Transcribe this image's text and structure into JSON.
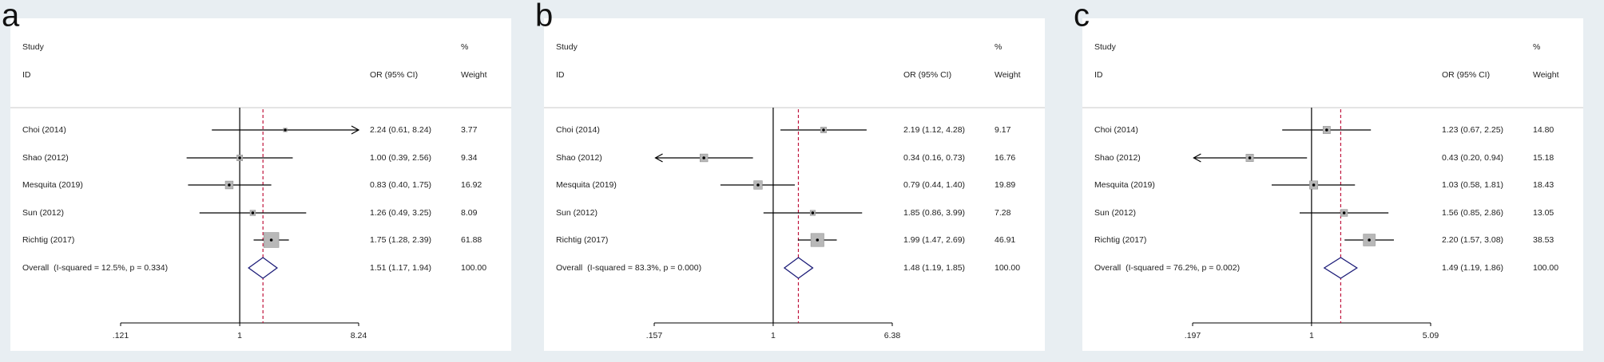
{
  "chart_data": [
    {
      "type": "forest",
      "panel": "a",
      "log": true,
      "headers": {
        "study": "Study",
        "id": "ID",
        "effect": "OR (95% CI)",
        "pct": "%",
        "weight": "Weight"
      },
      "studies": [
        "Choi (2014)",
        "Shao (2012)",
        "Mesquita (2019)",
        "Sun (2012)",
        "Richtig (2017)"
      ],
      "values": [
        2.24,
        1,
        0.83,
        1.26,
        1.75
      ],
      "lower": [
        0.61,
        0.39,
        0.4,
        0.49,
        1.28
      ],
      "upper": [
        8.24,
        2.56,
        1.75,
        3.25,
        2.39
      ],
      "value_labels": [
        "2.24 (0.61, 8.24)",
        "1.00 (0.39, 2.56)",
        "0.83 (0.40, 1.75)",
        "1.26 (0.49, 3.25)",
        "1.75 (1.28, 2.39)"
      ],
      "weights": [
        3.77,
        9.34,
        16.92,
        8.09,
        61.88
      ],
      "weight_labels": [
        "3.77",
        "9.34",
        "16.92",
        "8.09",
        "61.88"
      ],
      "overall": {
        "label": "Overall  (I-squared = 12.5%, p = 0.334)",
        "value": 1.51,
        "lower": 1.17,
        "upper": 1.94,
        "value_label": "1.51 (1.17, 1.94)",
        "weight": 100,
        "weight_label": "100.00"
      },
      "xlim": [
        0.121,
        8.24
      ],
      "xticks": [
        {
          "value": 0.121,
          "label": ".121"
        },
        1,
        8.24
      ],
      "color": "#b8b8b8",
      "diamond_color": "#1c1c78",
      "ref_color": "#c0143c"
    },
    {
      "type": "forest",
      "panel": "b",
      "log": true,
      "headers": {
        "study": "Study",
        "id": "ID",
        "effect": "OR (95% CI)",
        "pct": "%",
        "weight": "Weight"
      },
      "studies": [
        "Choi (2014)",
        "Shao (2012)",
        "Mesquita (2019)",
        "Sun (2012)",
        "Richtig (2017)"
      ],
      "values": [
        2.19,
        0.34,
        0.79,
        1.85,
        1.99
      ],
      "lower": [
        1.12,
        0.16,
        0.44,
        0.86,
        1.47
      ],
      "upper": [
        4.28,
        0.73,
        1.4,
        3.99,
        2.69
      ],
      "value_labels": [
        "2.19 (1.12, 4.28)",
        "0.34 (0.16, 0.73)",
        "0.79 (0.44, 1.40)",
        "1.85 (0.86, 3.99)",
        "1.99 (1.47, 2.69)"
      ],
      "weights": [
        9.17,
        16.76,
        19.89,
        7.28,
        46.91
      ],
      "weight_labels": [
        "9.17",
        "16.76",
        "19.89",
        "7.28",
        "46.91"
      ],
      "overall": {
        "label": "Overall  (I-squared = 83.3%, p = 0.000)",
        "value": 1.48,
        "lower": 1.19,
        "upper": 1.85,
        "value_label": "1.48 (1.19, 1.85)",
        "weight": 100,
        "weight_label": "100.00"
      },
      "xlim": [
        0.157,
        6.38
      ],
      "xticks": [
        {
          "value": 0.157,
          "label": ".157"
        },
        1,
        6.38
      ],
      "color": "#b8b8b8",
      "diamond_color": "#1c1c78",
      "ref_color": "#c0143c"
    },
    {
      "type": "forest",
      "panel": "c",
      "log": true,
      "headers": {
        "study": "Study",
        "id": "ID",
        "effect": "OR (95% CI)",
        "pct": "%",
        "weight": "Weight"
      },
      "studies": [
        "Choi (2014)",
        "Shao (2012)",
        "Mesquita (2019)",
        "Sun (2012)",
        "Richtig (2017)"
      ],
      "values": [
        1.23,
        0.43,
        1.03,
        1.56,
        2.2
      ],
      "lower": [
        0.67,
        0.2,
        0.58,
        0.85,
        1.57
      ],
      "upper": [
        2.25,
        0.94,
        1.81,
        2.86,
        3.08
      ],
      "value_labels": [
        "1.23 (0.67, 2.25)",
        "0.43 (0.20, 0.94)",
        "1.03 (0.58, 1.81)",
        "1.56 (0.85, 2.86)",
        "2.20 (1.57, 3.08)"
      ],
      "weights": [
        14.8,
        15.18,
        18.43,
        13.05,
        38.53
      ],
      "weight_labels": [
        "14.80",
        "15.18",
        "18.43",
        "13.05",
        "38.53"
      ],
      "overall": {
        "label": "Overall  (I-squared = 76.2%, p = 0.002)",
        "value": 1.49,
        "lower": 1.19,
        "upper": 1.86,
        "value_label": "1.49 (1.19, 1.86)",
        "weight": 100,
        "weight_label": "100.00"
      },
      "xlim": [
        0.197,
        5.09
      ],
      "xticks": [
        {
          "value": 0.197,
          "label": ".197"
        },
        1,
        5.09
      ],
      "color": "#b8b8b8",
      "diamond_color": "#1c1c78",
      "ref_color": "#c0143c"
    }
  ]
}
